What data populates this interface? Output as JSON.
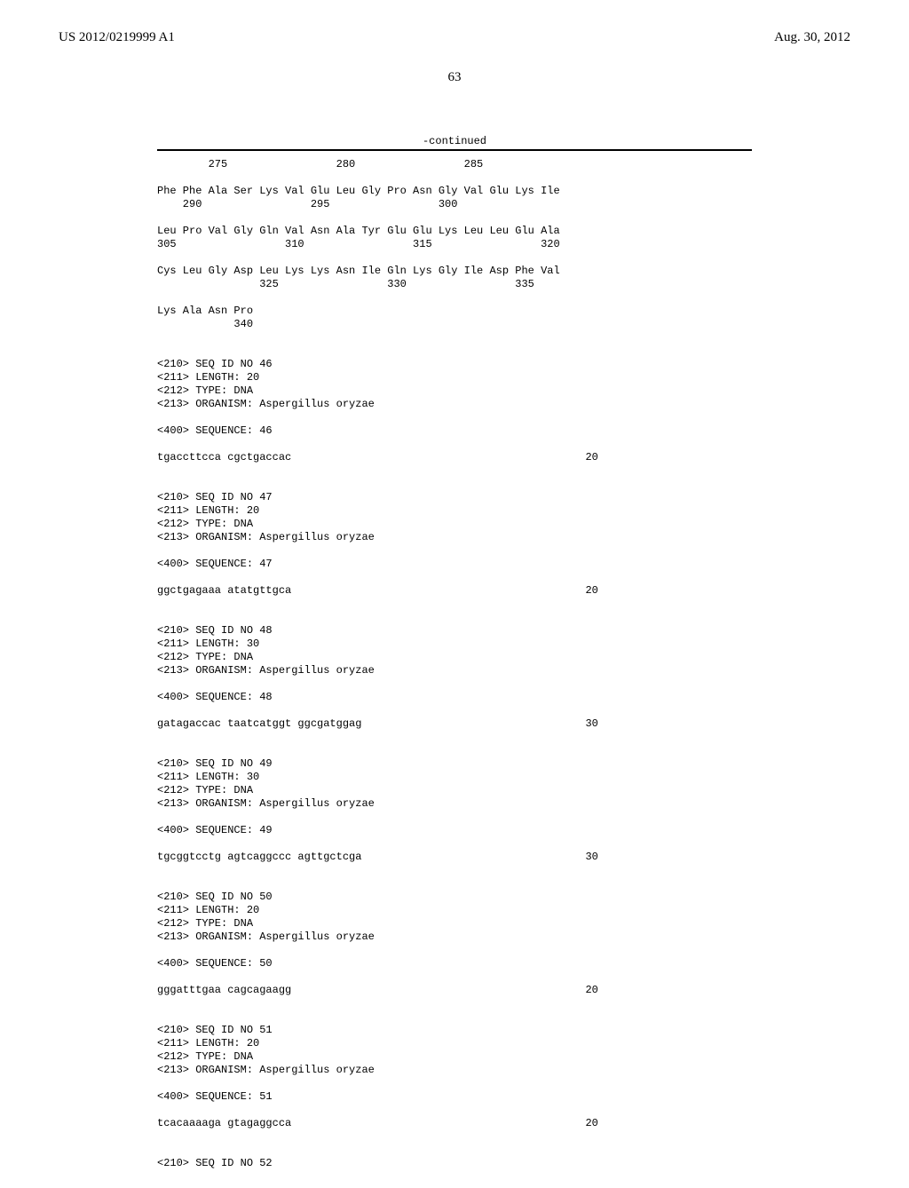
{
  "header": {
    "publication_number": "US 2012/0219999 A1",
    "publication_date": "Aug. 30, 2012",
    "page_number": "63"
  },
  "listing": {
    "continued_label": "-continued",
    "body": "        275                 280                 285\n\nPhe Phe Ala Ser Lys Val Glu Leu Gly Pro Asn Gly Val Glu Lys Ile\n    290                 295                 300\n\nLeu Pro Val Gly Gln Val Asn Ala Tyr Glu Glu Lys Leu Leu Glu Ala\n305                 310                 315                 320\n\nCys Leu Gly Asp Leu Lys Lys Asn Ile Gln Lys Gly Ile Asp Phe Val\n                325                 330                 335\n\nLys Ala Asn Pro\n            340\n\n\n<210> SEQ ID NO 46\n<211> LENGTH: 20\n<212> TYPE: DNA\n<213> ORGANISM: Aspergillus oryzae\n\n<400> SEQUENCE: 46\n\ntgaccttcca cgctgaccac                                              20\n\n\n<210> SEQ ID NO 47\n<211> LENGTH: 20\n<212> TYPE: DNA\n<213> ORGANISM: Aspergillus oryzae\n\n<400> SEQUENCE: 47\n\nggctgagaaa atatgttgca                                              20\n\n\n<210> SEQ ID NO 48\n<211> LENGTH: 30\n<212> TYPE: DNA\n<213> ORGANISM: Aspergillus oryzae\n\n<400> SEQUENCE: 48\n\ngatagaccac taatcatggt ggcgatggag                                   30\n\n\n<210> SEQ ID NO 49\n<211> LENGTH: 30\n<212> TYPE: DNA\n<213> ORGANISM: Aspergillus oryzae\n\n<400> SEQUENCE: 49\n\ntgcggtcctg agtcaggccc agttgctcga                                   30\n\n\n<210> SEQ ID NO 50\n<211> LENGTH: 20\n<212> TYPE: DNA\n<213> ORGANISM: Aspergillus oryzae\n\n<400> SEQUENCE: 50\n\ngggatttgaa cagcagaagg                                              20\n\n\n<210> SEQ ID NO 51\n<211> LENGTH: 20\n<212> TYPE: DNA\n<213> ORGANISM: Aspergillus oryzae\n\n<400> SEQUENCE: 51\n\ntcacaaaaga gtagaggcca                                              20\n\n\n<210> SEQ ID NO 52"
  }
}
